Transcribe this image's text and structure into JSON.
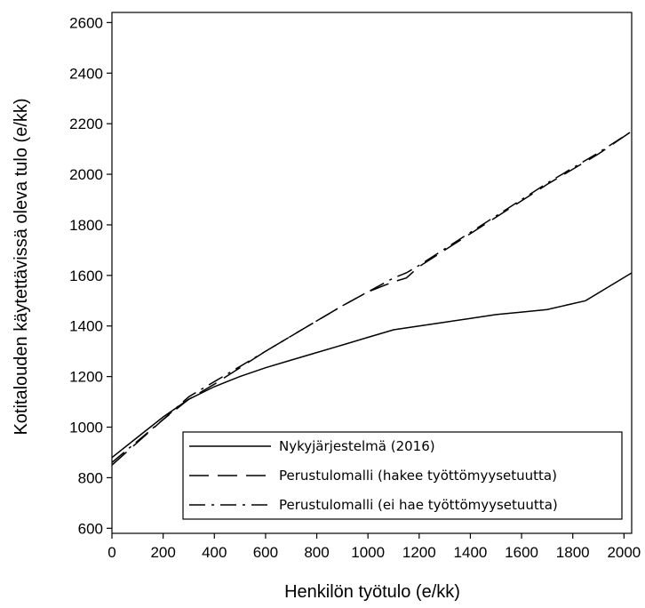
{
  "chart_data": {
    "type": "line",
    "xlabel": "Henkilön työtulo (e/kk)",
    "ylabel": "Kotitalouden käytettävissä oleva tulo (e/kk)",
    "xlim": [
      0,
      2030
    ],
    "ylim": [
      580,
      2640
    ],
    "x_ticks": [
      0,
      200,
      400,
      600,
      800,
      1000,
      1200,
      1400,
      1600,
      1800,
      2000
    ],
    "y_ticks": [
      600,
      800,
      1000,
      1200,
      1400,
      1600,
      1800,
      2000,
      2200,
      2400,
      2600
    ],
    "grid": false,
    "legend_position": "bottom-right",
    "series": [
      {
        "name": "Nykyjärjestelmä (2016)",
        "style": "solid",
        "color": "#000000",
        "points": [
          [
            0,
            880
          ],
          [
            100,
            960
          ],
          [
            200,
            1040
          ],
          [
            300,
            1110
          ],
          [
            400,
            1160
          ],
          [
            500,
            1200
          ],
          [
            600,
            1235
          ],
          [
            700,
            1265
          ],
          [
            800,
            1295
          ],
          [
            900,
            1325
          ],
          [
            1000,
            1355
          ],
          [
            1100,
            1385
          ],
          [
            1200,
            1400
          ],
          [
            1300,
            1415
          ],
          [
            1400,
            1430
          ],
          [
            1500,
            1445
          ],
          [
            1600,
            1455
          ],
          [
            1700,
            1465
          ],
          [
            1850,
            1500
          ],
          [
            2030,
            1610
          ]
        ]
      },
      {
        "name": "Perustulomalli (hakee työttömyysetuutta)",
        "style": "long-dash",
        "color": "#000000",
        "points": [
          [
            0,
            850
          ],
          [
            100,
            940
          ],
          [
            200,
            1030
          ],
          [
            300,
            1110
          ],
          [
            400,
            1170
          ],
          [
            500,
            1235
          ],
          [
            600,
            1300
          ],
          [
            700,
            1360
          ],
          [
            800,
            1420
          ],
          [
            900,
            1480
          ],
          [
            1000,
            1535
          ],
          [
            1100,
            1575
          ],
          [
            1150,
            1590
          ],
          [
            1200,
            1635
          ],
          [
            1300,
            1700
          ],
          [
            1400,
            1765
          ],
          [
            1500,
            1830
          ],
          [
            1600,
            1895
          ],
          [
            1700,
            1960
          ],
          [
            1800,
            2020
          ],
          [
            1900,
            2080
          ],
          [
            2030,
            2170
          ]
        ]
      },
      {
        "name": "Perustulomalli (ei hae työttömyysetuutta)",
        "style": "dash-dot",
        "color": "#000000",
        "points": [
          [
            0,
            860
          ],
          [
            100,
            945
          ],
          [
            200,
            1030
          ],
          [
            300,
            1120
          ],
          [
            400,
            1180
          ],
          [
            500,
            1240
          ],
          [
            600,
            1300
          ],
          [
            700,
            1360
          ],
          [
            800,
            1420
          ],
          [
            900,
            1480
          ],
          [
            1000,
            1535
          ],
          [
            1100,
            1590
          ],
          [
            1150,
            1610
          ],
          [
            1200,
            1640
          ],
          [
            1300,
            1705
          ],
          [
            1400,
            1770
          ],
          [
            1500,
            1835
          ],
          [
            1600,
            1900
          ],
          [
            1700,
            1965
          ],
          [
            1800,
            2025
          ],
          [
            1900,
            2085
          ],
          [
            2030,
            2170
          ]
        ]
      }
    ]
  }
}
